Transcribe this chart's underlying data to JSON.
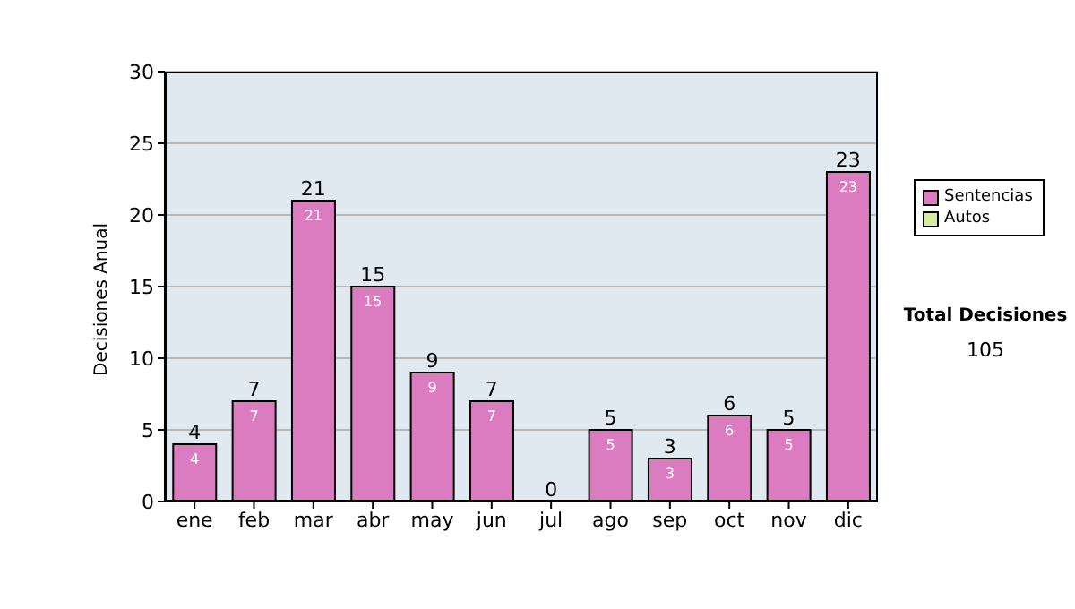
{
  "chart_data": {
    "type": "bar",
    "stacked": true,
    "ylabel": "Decisiones Anual",
    "categories": [
      "ene",
      "feb",
      "mar",
      "abr",
      "may",
      "jun",
      "jul",
      "ago",
      "sep",
      "oct",
      "nov",
      "dic"
    ],
    "series": [
      {
        "name": "Sentencias",
        "color": "#dc7cc0",
        "values": [
          4,
          7,
          21,
          15,
          9,
          7,
          0,
          5,
          3,
          6,
          5,
          23
        ],
        "value_labels": [
          "4",
          "7",
          "21",
          "15",
          "9",
          "7",
          null,
          "5",
          "3",
          "6",
          "5",
          "23"
        ]
      },
      {
        "name": "Autos",
        "color": "#d4ec9c",
        "values": [
          0,
          0,
          0,
          0,
          0,
          0,
          0,
          0,
          0,
          0,
          0,
          0
        ]
      }
    ],
    "totals": [
      "4",
      "7",
      "21",
      "15",
      "9",
      "7",
      "0",
      "5",
      "3",
      "6",
      "5",
      "23"
    ],
    "ylim": [
      0,
      30
    ],
    "yticks": [
      0,
      5,
      10,
      15,
      20,
      25,
      30
    ],
    "grid": "y",
    "legend": "right",
    "annotations": [
      "Total Decisiones",
      "105"
    ]
  }
}
